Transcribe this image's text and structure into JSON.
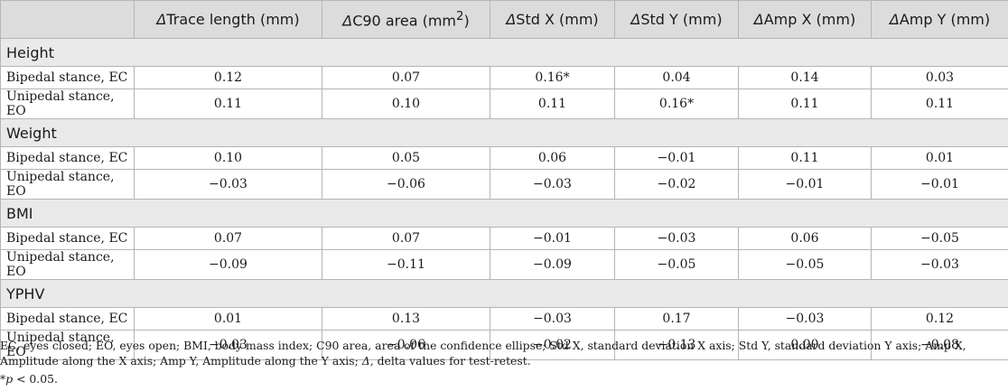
{
  "table": {
    "headers": [
      "",
      "ΔTrace length (mm)",
      "ΔC90 area (mm2)",
      "ΔStd X (mm)",
      "ΔStd Y (mm)",
      "ΔAmp X (mm)",
      "ΔAmp Y (mm)"
    ],
    "header_parts": {
      "delta": "Δ",
      "trace": "Trace length (mm)",
      "c90_pre": "C90 area (mm",
      "c90_sup": "2",
      "c90_post": ")",
      "stdx": "Std X (mm)",
      "stdy": "Std Y (mm)",
      "ampx": "Amp X (mm)",
      "ampy": "Amp Y (mm)"
    },
    "sections": [
      {
        "title": "Height",
        "rows": [
          {
            "label": "Bipedal stance, EC",
            "values": [
              "0.12",
              "0.07",
              "0.16*",
              "0.04",
              "0.14",
              "0.03"
            ]
          },
          {
            "label": "Unipedal stance, EO",
            "values": [
              "0.11",
              "0.10",
              "0.11",
              "0.16*",
              "0.11",
              "0.11"
            ]
          }
        ]
      },
      {
        "title": "Weight",
        "rows": [
          {
            "label": "Bipedal stance, EC",
            "values": [
              "0.10",
              "0.05",
              "0.06",
              "−0.01",
              "0.11",
              "0.01"
            ]
          },
          {
            "label": "Unipedal stance, EO",
            "values": [
              "−0.03",
              "−0.06",
              "−0.03",
              "−0.02",
              "−0.01",
              "−0.01"
            ]
          }
        ]
      },
      {
        "title": "BMI",
        "rows": [
          {
            "label": "Bipedal stance, EC",
            "values": [
              "0.07",
              "0.07",
              "−0.01",
              "−0.03",
              "0.06",
              "−0.05"
            ]
          },
          {
            "label": "Unipedal stance, EO",
            "values": [
              "−0.09",
              "−0.11",
              "−0.09",
              "−0.05",
              "−0.05",
              "−0.03"
            ]
          }
        ]
      },
      {
        "title": "YPHV",
        "rows": [
          {
            "label": "Bipedal stance, EC",
            "values": [
              "0.01",
              "0.13",
              "−0.03",
              "0.17",
              "−0.03",
              "0.12"
            ]
          },
          {
            "label": "Unipedal stance, EO",
            "values": [
              "−0.03",
              "−0.06",
              "−0.02",
              "−0.13",
              "0.00",
              "−0.08"
            ]
          }
        ]
      }
    ]
  },
  "footnote": {
    "abbreviations_pre": "EC, eyes closed; EO, eyes open; BMI, body mass index; C90 area, area of the confidence ellipse; Std X, standard deviation X axis; Std Y, standard deviation Y axis; Amp X, Amplitude along the X axis; Amp Y, Amplitude along the Y axis; ",
    "abbreviations_delta": "Δ",
    "abbreviations_post": ", delta values for test-retest.",
    "pvalue_star": "*",
    "pvalue_p": "p",
    "pvalue_rest": " < 0.05."
  }
}
